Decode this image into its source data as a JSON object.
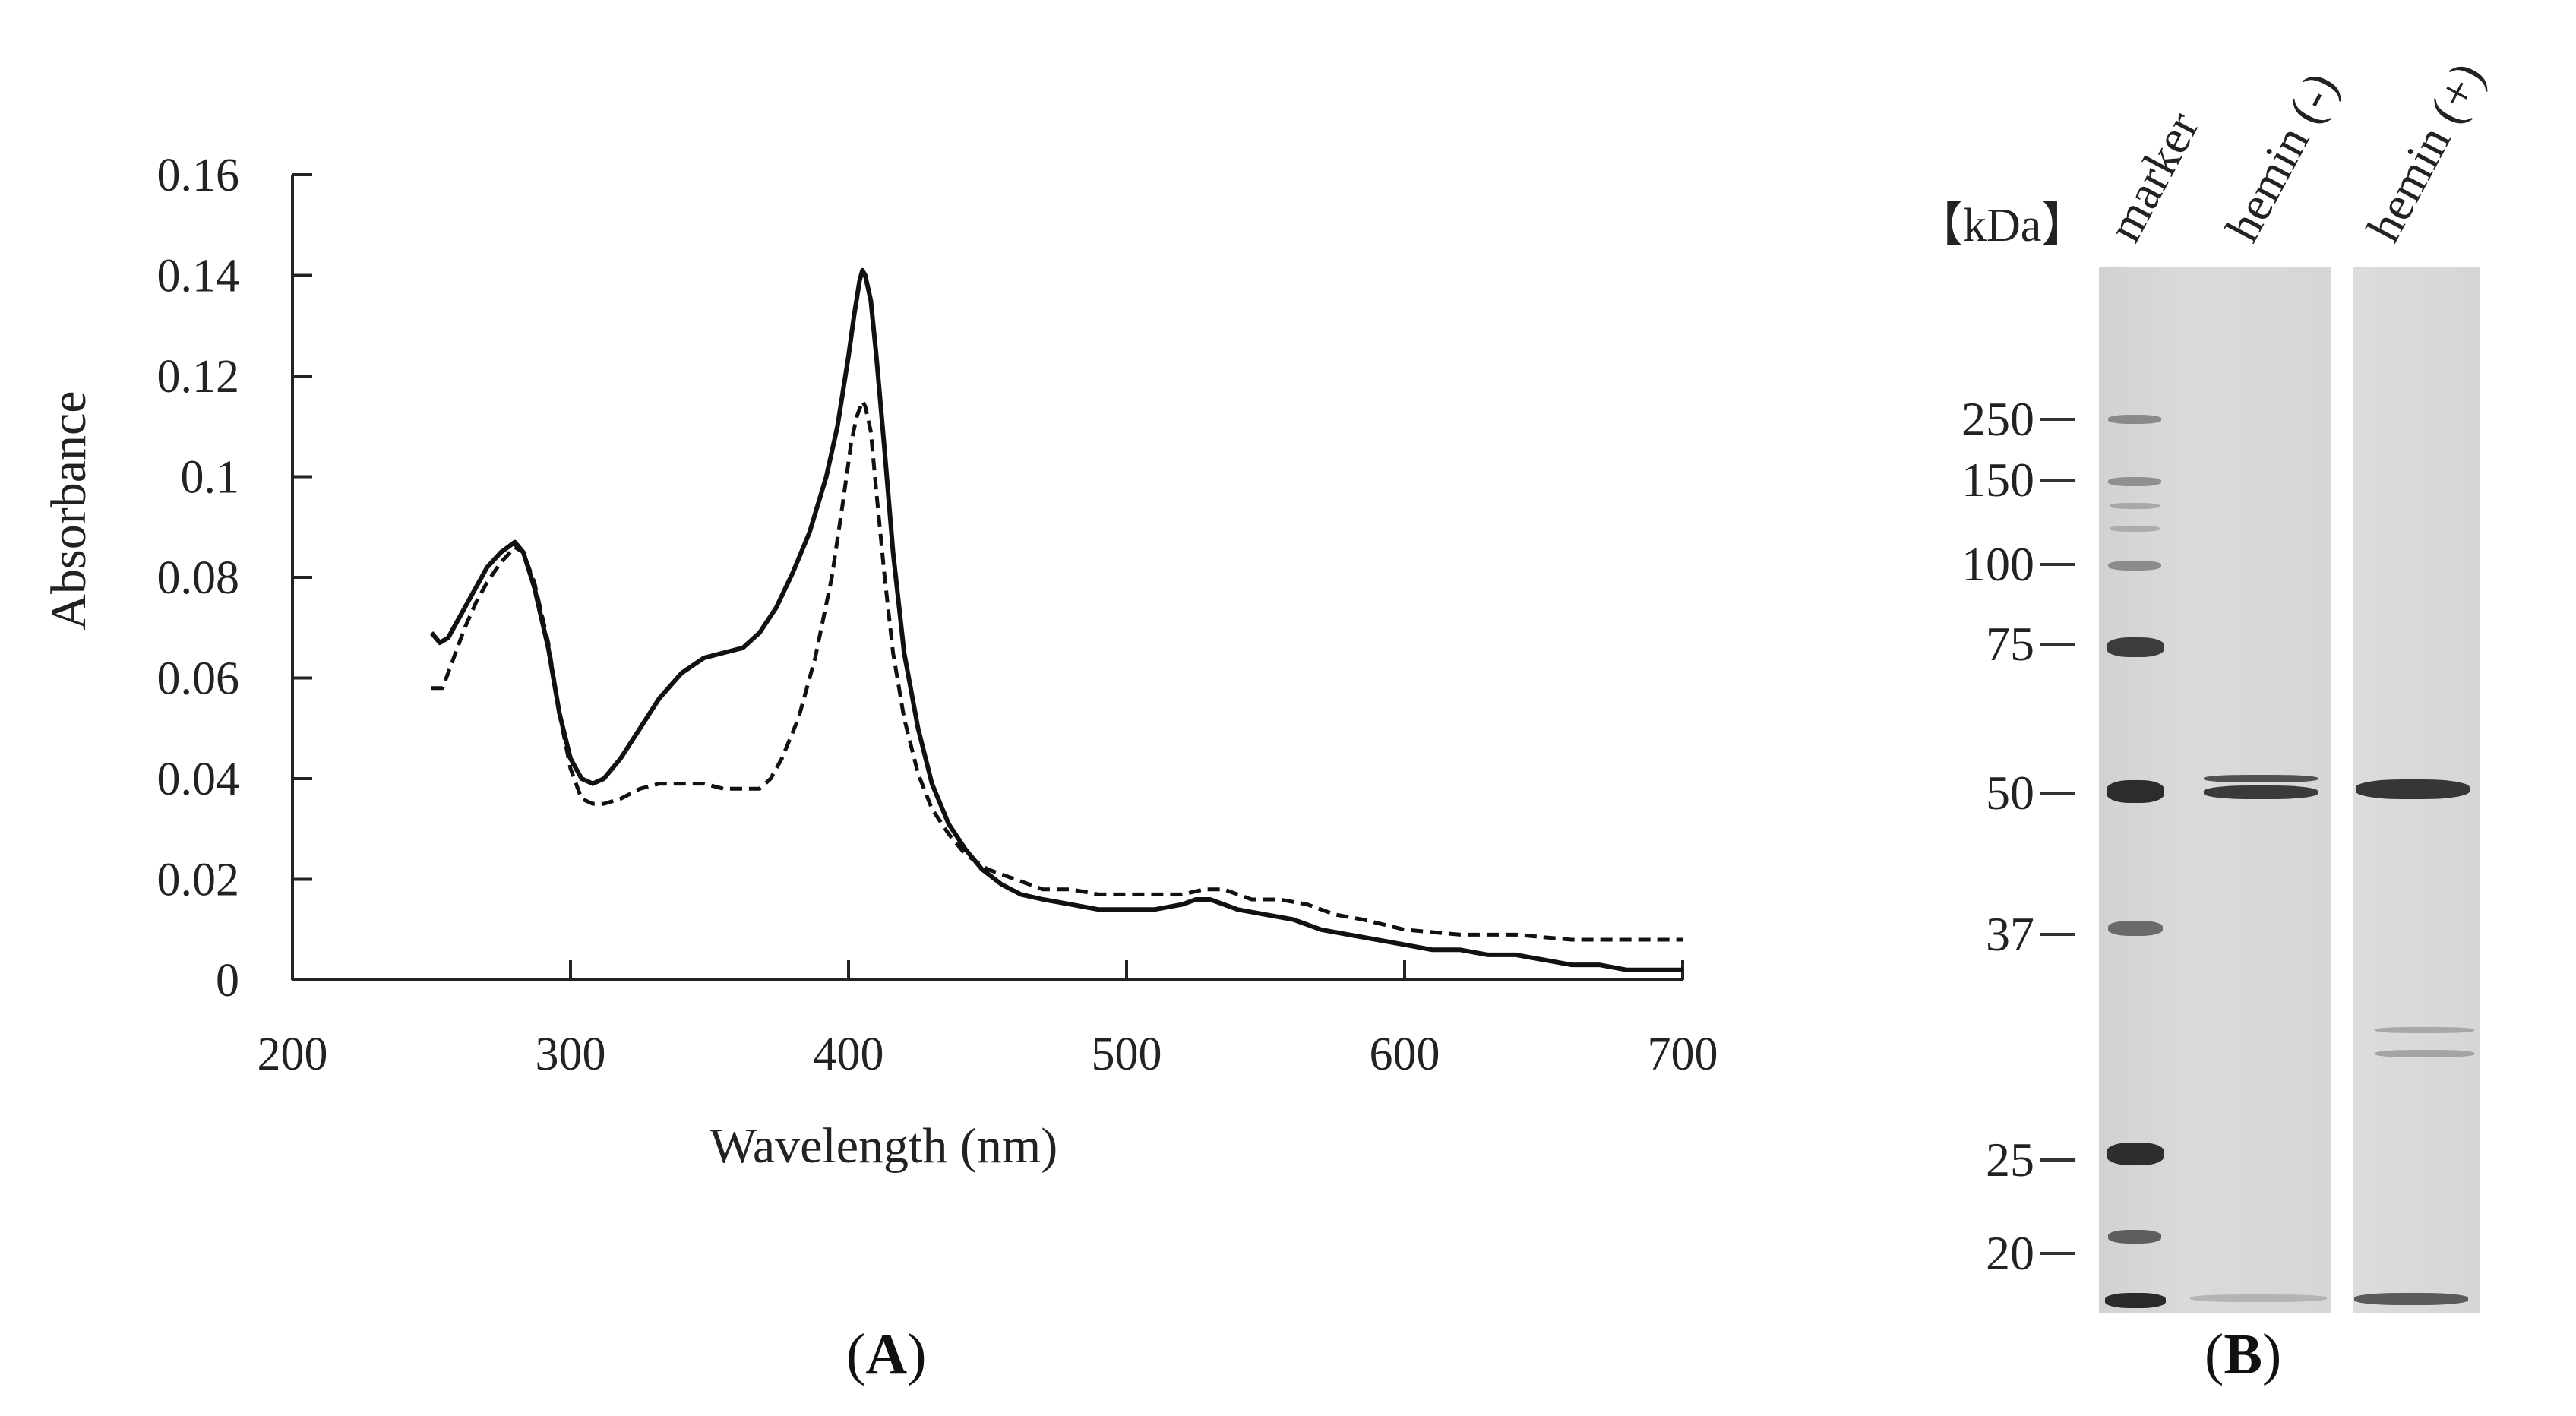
{
  "chart_data": {
    "type": "line",
    "title": "",
    "xlabel": "Wavelength (nm)",
    "ylabel": "Absorbance",
    "xlim": [
      200,
      700
    ],
    "ylim": [
      0,
      0.16
    ],
    "xticks": [
      200,
      300,
      400,
      500,
      600,
      700
    ],
    "xtick_labels": [
      "200",
      "300",
      "400",
      "500",
      "600",
      "700"
    ],
    "yticks": [
      0,
      0.02,
      0.04,
      0.06,
      0.08,
      0.1,
      0.12,
      0.14,
      0.16
    ],
    "ytick_labels": [
      "0",
      "0.02",
      "0.04",
      "0.06",
      "0.08",
      "0.1",
      "0.12",
      "0.14",
      "0.16"
    ],
    "grid": false,
    "series": [
      {
        "name": "solid",
        "style": "solid",
        "x": [
          250,
          253,
          256,
          260,
          265,
          270,
          275,
          280,
          283,
          287,
          292,
          296,
          300,
          304,
          308,
          312,
          318,
          325,
          332,
          340,
          348,
          355,
          362,
          368,
          374,
          380,
          386,
          392,
          396,
          400,
          402,
          404,
          405,
          406,
          408,
          410,
          413,
          416,
          420,
          425,
          430,
          436,
          442,
          448,
          455,
          462,
          470,
          480,
          490,
          500,
          510,
          520,
          525,
          530,
          535,
          540,
          550,
          560,
          570,
          580,
          590,
          600,
          610,
          620,
          630,
          640,
          650,
          660,
          670,
          680,
          690,
          700
        ],
        "y": [
          0.069,
          0.067,
          0.068,
          0.072,
          0.077,
          0.082,
          0.085,
          0.087,
          0.085,
          0.078,
          0.066,
          0.053,
          0.044,
          0.04,
          0.039,
          0.04,
          0.044,
          0.05,
          0.056,
          0.061,
          0.064,
          0.065,
          0.066,
          0.069,
          0.074,
          0.081,
          0.089,
          0.1,
          0.11,
          0.124,
          0.132,
          0.139,
          0.141,
          0.14,
          0.135,
          0.124,
          0.105,
          0.085,
          0.065,
          0.05,
          0.039,
          0.031,
          0.026,
          0.022,
          0.019,
          0.017,
          0.016,
          0.015,
          0.014,
          0.014,
          0.014,
          0.015,
          0.016,
          0.016,
          0.015,
          0.014,
          0.013,
          0.012,
          0.01,
          0.009,
          0.008,
          0.007,
          0.006,
          0.006,
          0.005,
          0.005,
          0.004,
          0.003,
          0.003,
          0.002,
          0.002,
          0.002
        ]
      },
      {
        "name": "dashed",
        "style": "dashed",
        "x": [
          250,
          254,
          258,
          262,
          266,
          270,
          275,
          280,
          283,
          287,
          292,
          296,
          300,
          304,
          308,
          312,
          318,
          325,
          332,
          340,
          348,
          355,
          362,
          368,
          372,
          376,
          382,
          388,
          394,
          398,
          401,
          403,
          405,
          406,
          408,
          410,
          413,
          416,
          420,
          425,
          430,
          436,
          442,
          450,
          460,
          470,
          480,
          490,
          500,
          510,
          520,
          528,
          535,
          545,
          555,
          565,
          575,
          585,
          600,
          620,
          640,
          660,
          680,
          700
        ],
        "y": [
          0.058,
          0.058,
          0.064,
          0.07,
          0.075,
          0.079,
          0.083,
          0.086,
          0.085,
          0.079,
          0.067,
          0.053,
          0.042,
          0.036,
          0.035,
          0.035,
          0.036,
          0.038,
          0.039,
          0.039,
          0.039,
          0.038,
          0.038,
          0.038,
          0.04,
          0.044,
          0.052,
          0.064,
          0.08,
          0.095,
          0.107,
          0.112,
          0.115,
          0.114,
          0.109,
          0.097,
          0.08,
          0.065,
          0.052,
          0.041,
          0.034,
          0.029,
          0.025,
          0.022,
          0.02,
          0.018,
          0.018,
          0.017,
          0.017,
          0.017,
          0.017,
          0.018,
          0.018,
          0.016,
          0.016,
          0.015,
          0.013,
          0.012,
          0.01,
          0.009,
          0.009,
          0.008,
          0.008,
          0.008
        ]
      }
    ]
  },
  "panel_a_label": {
    "open": "(",
    "letter": "A",
    "close": ")"
  },
  "panel_b_label": {
    "open": "(",
    "letter": "B",
    "close": ")"
  },
  "gel": {
    "unit_label": "【kDa】",
    "lanes": [
      "marker",
      "hemin (-)",
      "hemin (+)"
    ],
    "markers": [
      "250",
      "150",
      "100",
      "75",
      "50",
      "37",
      "25",
      "20"
    ]
  }
}
